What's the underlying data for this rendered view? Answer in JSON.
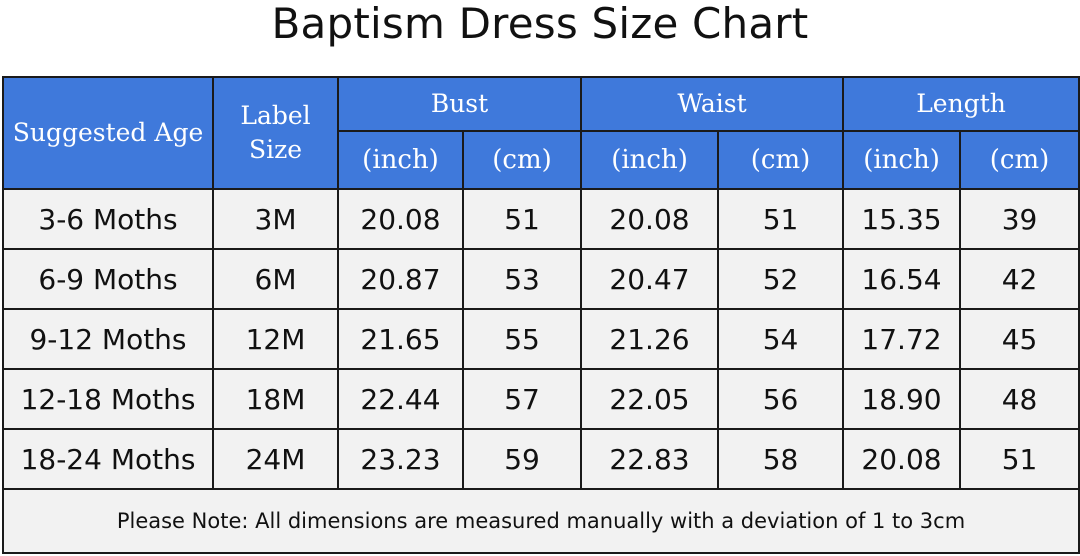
{
  "title": "Baptism Dress Size Chart",
  "header": {
    "age": "Suggested Age",
    "label_size_line1": "Label",
    "label_size_line2": "Size",
    "bust": "Bust",
    "waist": "Waist",
    "length": "Length",
    "inch": "(inch)",
    "cm": "(cm)"
  },
  "rows": [
    {
      "age": "3-6 Moths",
      "size": "3M",
      "bust_in": "20.08",
      "bust_cm": "51",
      "waist_in": "20.08",
      "waist_cm": "51",
      "length_in": "15.35",
      "length_cm": "39"
    },
    {
      "age": "6-9 Moths",
      "size": "6M",
      "bust_in": "20.87",
      "bust_cm": "53",
      "waist_in": "20.47",
      "waist_cm": "52",
      "length_in": "16.54",
      "length_cm": "42"
    },
    {
      "age": "9-12 Moths",
      "size": "12M",
      "bust_in": "21.65",
      "bust_cm": "55",
      "waist_in": "21.26",
      "waist_cm": "54",
      "length_in": "17.72",
      "length_cm": "45"
    },
    {
      "age": "12-18 Moths",
      "size": "18M",
      "bust_in": "22.44",
      "bust_cm": "57",
      "waist_in": "22.05",
      "waist_cm": "56",
      "length_in": "18.90",
      "length_cm": "48"
    },
    {
      "age": "18-24 Moths",
      "size": "24M",
      "bust_in": "23.23",
      "bust_cm": "59",
      "waist_in": "22.83",
      "waist_cm": "58",
      "length_in": "20.08",
      "length_cm": "51"
    }
  ],
  "note": "Please Note: All dimensions are measured manually with a deviation of 1 to 3cm",
  "colors": {
    "header_bg": "#3f79db",
    "cell_bg": "#f2f2f2",
    "border": "#1a1a1a"
  }
}
